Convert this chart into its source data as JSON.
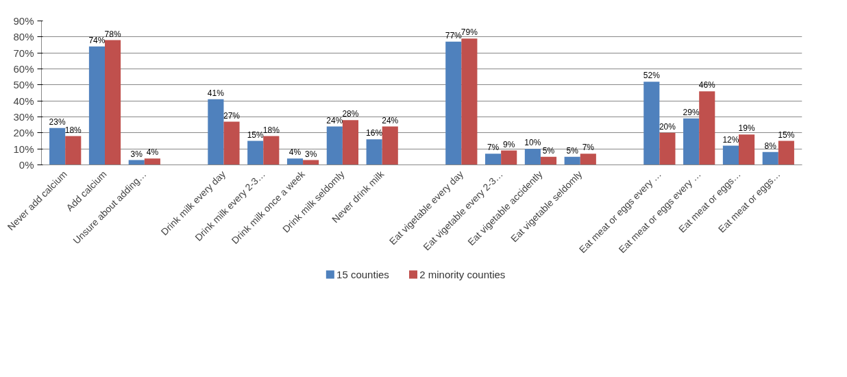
{
  "chart_data": {
    "type": "bar",
    "categories": [
      "Never add calcium",
      "Add calcium",
      "Unsure about adding…",
      null,
      "Drink milk every day",
      "Drink milk every 2-3…",
      "Drink milk once a week",
      "Drink milk seldomly",
      "Never drink milk",
      null,
      "Eat vigetable every day",
      "Eat vigetable every 2-3…",
      "Eat vigetable accidently",
      "Eat vigetable seldomly",
      null,
      "Eat meat or eggs every …",
      "Eat meat or eggs every …",
      "Eat meat or eggs…",
      "Eat meat or eggs…"
    ],
    "series": [
      {
        "name": "15 counties",
        "color": "#4f81bd",
        "values": [
          23,
          74,
          3,
          null,
          41,
          15,
          4,
          24,
          16,
          null,
          77,
          7,
          10,
          5,
          null,
          52,
          29,
          12,
          8
        ],
        "value_labels": [
          "23%",
          "74%",
          "3%",
          null,
          "41%",
          "15%",
          "4%",
          "24%",
          "16%",
          null,
          "77%",
          "7%",
          "10%",
          "5%",
          null,
          "52%",
          "29%",
          "12%",
          "8%"
        ]
      },
      {
        "name": "2 minority counties",
        "color": "#c0504d",
        "values": [
          18,
          78,
          4,
          null,
          27,
          18,
          3,
          28,
          24,
          null,
          79,
          9,
          5,
          7,
          null,
          20,
          46,
          19,
          15
        ],
        "value_labels": [
          "18%",
          "78%",
          "4%",
          null,
          "27%",
          "18%",
          "3%",
          "28%",
          "24%",
          null,
          "79%",
          "9%",
          "5%",
          "7%",
          null,
          "20%",
          "46%",
          "19%",
          "15%"
        ]
      }
    ],
    "ylim": [
      0,
      90
    ],
    "yticks": [
      {
        "value": 0,
        "label": "0%"
      },
      {
        "value": 10,
        "label": "10%"
      },
      {
        "value": 20,
        "label": "20%"
      },
      {
        "value": 30,
        "label": "30%"
      },
      {
        "value": 40,
        "label": "40%"
      },
      {
        "value": 50,
        "label": "50%"
      },
      {
        "value": 60,
        "label": "60%"
      },
      {
        "value": 70,
        "label": "70%"
      },
      {
        "value": 80,
        "label": "80%"
      },
      {
        "value": 90,
        "label": "90%"
      }
    ],
    "grid": "y",
    "legend": "bottom"
  }
}
